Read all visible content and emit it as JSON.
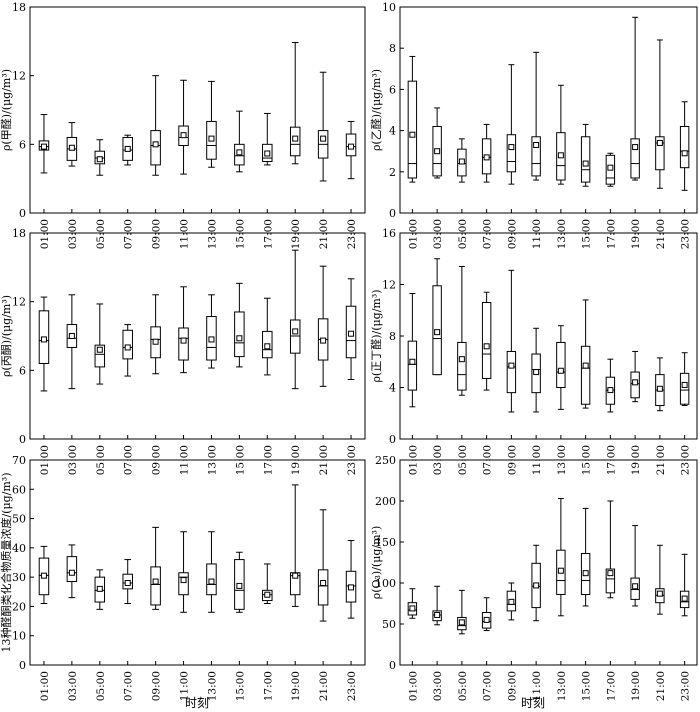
{
  "x_title": "时刻",
  "times": [
    "01:00",
    "03:00",
    "05:00",
    "07:00",
    "09:00",
    "11:00",
    "13:00",
    "15:00",
    "17:00",
    "19:00",
    "21:00",
    "23:00"
  ],
  "chart_data": [
    {
      "type": "box",
      "ylabel": "ρ(甲醛)/(μg/m³)",
      "ylim": [
        0,
        18
      ],
      "yticks": [
        0,
        6,
        12,
        18
      ],
      "boxes": [
        {
          "min": 3.5,
          "q1": 5.5,
          "median": 5.8,
          "q3": 6.3,
          "max": 8.6,
          "mean": 5.8
        },
        {
          "min": 4.1,
          "q1": 4.6,
          "median": 5.6,
          "q3": 6.6,
          "max": 7.9,
          "mean": 5.7
        },
        {
          "min": 3.3,
          "q1": 4.3,
          "median": 4.8,
          "q3": 5.4,
          "max": 6.4,
          "mean": 4.7
        },
        {
          "min": 4.2,
          "q1": 4.6,
          "median": 5.5,
          "q3": 6.6,
          "max": 6.8,
          "mean": 5.6
        },
        {
          "min": 3.3,
          "q1": 4.2,
          "median": 5.9,
          "q3": 7.2,
          "max": 12.0,
          "mean": 6.0
        },
        {
          "min": 3.4,
          "q1": 5.9,
          "median": 6.6,
          "q3": 7.6,
          "max": 11.6,
          "mean": 6.8
        },
        {
          "min": 4.0,
          "q1": 4.7,
          "median": 5.9,
          "q3": 8.0,
          "max": 11.5,
          "mean": 6.5
        },
        {
          "min": 3.6,
          "q1": 4.2,
          "median": 5.0,
          "q3": 6.0,
          "max": 8.9,
          "mean": 5.3
        },
        {
          "min": 4.2,
          "q1": 4.5,
          "median": 4.8,
          "q3": 6.0,
          "max": 8.7,
          "mean": 5.2
        },
        {
          "min": 4.3,
          "q1": 5.0,
          "median": 6.0,
          "q3": 7.5,
          "max": 14.9,
          "mean": 6.5
        },
        {
          "min": 2.8,
          "q1": 4.8,
          "median": 6.0,
          "q3": 7.2,
          "max": 12.3,
          "mean": 6.5
        },
        {
          "min": 3.0,
          "q1": 5.0,
          "median": 5.8,
          "q3": 6.9,
          "max": 8.0,
          "mean": 5.8
        }
      ]
    },
    {
      "type": "box",
      "ylabel": "ρ(乙醛)/(μg/m³)",
      "ylim": [
        0,
        10
      ],
      "yticks": [
        0,
        2,
        4,
        6,
        8,
        10
      ],
      "boxes": [
        {
          "min": 1.5,
          "q1": 1.7,
          "median": 2.4,
          "q3": 6.4,
          "max": 7.6,
          "mean": 3.8
        },
        {
          "min": 1.7,
          "q1": 1.8,
          "median": 2.4,
          "q3": 4.2,
          "max": 5.1,
          "mean": 3.0
        },
        {
          "min": 1.5,
          "q1": 1.8,
          "median": 2.4,
          "q3": 3.1,
          "max": 3.6,
          "mean": 2.5
        },
        {
          "min": 1.5,
          "q1": 1.9,
          "median": 2.7,
          "q3": 3.6,
          "max": 4.3,
          "mean": 2.7
        },
        {
          "min": 1.4,
          "q1": 2.0,
          "median": 2.5,
          "q3": 3.8,
          "max": 7.2,
          "mean": 3.2
        },
        {
          "min": 1.6,
          "q1": 1.8,
          "median": 2.4,
          "q3": 3.7,
          "max": 7.8,
          "mean": 3.3
        },
        {
          "min": 1.4,
          "q1": 1.6,
          "median": 2.3,
          "q3": 3.9,
          "max": 6.2,
          "mean": 2.8
        },
        {
          "min": 1.3,
          "q1": 1.5,
          "median": 2.1,
          "q3": 3.7,
          "max": 4.3,
          "mean": 2.4
        },
        {
          "min": 1.3,
          "q1": 1.4,
          "median": 1.7,
          "q3": 2.8,
          "max": 2.9,
          "mean": 2.2
        },
        {
          "min": 1.6,
          "q1": 1.7,
          "median": 2.4,
          "q3": 3.6,
          "max": 9.5,
          "mean": 3.2
        },
        {
          "min": 1.2,
          "q1": 2.1,
          "median": 3.4,
          "q3": 3.7,
          "max": 8.4,
          "mean": 3.4
        },
        {
          "min": 1.1,
          "q1": 2.2,
          "median": 3.0,
          "q3": 4.2,
          "max": 5.4,
          "mean": 2.9
        }
      ]
    },
    {
      "type": "box",
      "ylabel": "ρ(丙酮)/(μg/m³)",
      "ylim": [
        0,
        18
      ],
      "yticks": [
        0,
        6,
        12,
        18
      ],
      "boxes": [
        {
          "min": 4.2,
          "q1": 6.6,
          "median": 8.6,
          "q3": 11.2,
          "max": 12.4,
          "mean": 8.7
        },
        {
          "min": 4.4,
          "q1": 8.0,
          "median": 8.8,
          "q3": 10.0,
          "max": 12.6,
          "mean": 9.0
        },
        {
          "min": 4.8,
          "q1": 6.3,
          "median": 7.4,
          "q3": 8.2,
          "max": 11.8,
          "mean": 7.8
        },
        {
          "min": 5.5,
          "q1": 7.0,
          "median": 8.0,
          "q3": 9.5,
          "max": 10.0,
          "mean": 8.0
        },
        {
          "min": 5.7,
          "q1": 7.1,
          "median": 8.7,
          "q3": 9.8,
          "max": 12.6,
          "mean": 8.5
        },
        {
          "min": 5.8,
          "q1": 6.9,
          "median": 8.8,
          "q3": 9.7,
          "max": 13.3,
          "mean": 8.6
        },
        {
          "min": 6.2,
          "q1": 6.9,
          "median": 8.0,
          "q3": 10.7,
          "max": 12.6,
          "mean": 8.7
        },
        {
          "min": 6.3,
          "q1": 7.2,
          "median": 8.4,
          "q3": 11.1,
          "max": 13.6,
          "mean": 8.8
        },
        {
          "min": 5.6,
          "q1": 7.1,
          "median": 7.8,
          "q3": 9.4,
          "max": 12.3,
          "mean": 8.1
        },
        {
          "min": 4.4,
          "q1": 7.5,
          "median": 9.0,
          "q3": 10.4,
          "max": 16.5,
          "mean": 9.4
        },
        {
          "min": 4.6,
          "q1": 6.9,
          "median": 8.7,
          "q3": 10.5,
          "max": 15.1,
          "mean": 8.6
        },
        {
          "min": 5.2,
          "q1": 7.1,
          "median": 8.6,
          "q3": 11.6,
          "max": 14.0,
          "mean": 9.2
        }
      ]
    },
    {
      "type": "box",
      "ylabel": "ρ(正丁醛)/(μg/m³)",
      "ylim": [
        0,
        16
      ],
      "yticks": [
        0,
        4,
        8,
        12,
        16
      ],
      "boxes": [
        {
          "min": 2.5,
          "q1": 3.8,
          "median": 5.8,
          "q3": 7.6,
          "max": 11.3,
          "mean": 6.0
        },
        {
          "min": 5.0,
          "q1": 5.0,
          "median": 7.8,
          "q3": 11.9,
          "max": 14.0,
          "mean": 8.3
        },
        {
          "min": 3.4,
          "q1": 3.8,
          "median": 5.0,
          "q3": 7.5,
          "max": 13.4,
          "mean": 6.2
        },
        {
          "min": 3.8,
          "q1": 4.7,
          "median": 6.6,
          "q3": 10.6,
          "max": 11.4,
          "mean": 7.2
        },
        {
          "min": 2.1,
          "q1": 3.6,
          "median": 5.6,
          "q3": 6.8,
          "max": 13.1,
          "mean": 5.7
        },
        {
          "min": 2.1,
          "q1": 3.6,
          "median": 5.4,
          "q3": 6.6,
          "max": 8.6,
          "mean": 5.2
        },
        {
          "min": 2.3,
          "q1": 4.0,
          "median": 5.2,
          "q3": 7.5,
          "max": 8.8,
          "mean": 5.3
        },
        {
          "min": 2.4,
          "q1": 2.7,
          "median": 5.5,
          "q3": 7.2,
          "max": 10.8,
          "mean": 5.7
        },
        {
          "min": 2.1,
          "q1": 2.7,
          "median": 3.8,
          "q3": 4.8,
          "max": 6.2,
          "mean": 3.8
        },
        {
          "min": 2.9,
          "q1": 3.2,
          "median": 4.3,
          "q3": 5.2,
          "max": 6.8,
          "mean": 4.4
        },
        {
          "min": 2.2,
          "q1": 2.6,
          "median": 3.8,
          "q3": 5.0,
          "max": 6.3,
          "mean": 3.9
        },
        {
          "min": 2.6,
          "q1": 2.7,
          "median": 3.8,
          "q3": 5.1,
          "max": 6.7,
          "mean": 4.2
        }
      ]
    },
    {
      "type": "box",
      "ylabel": "13种醛酮类化合物质量浓度/(μg/m³)",
      "ylim": [
        0,
        70
      ],
      "yticks": [
        0,
        10,
        20,
        30,
        40,
        50,
        60,
        70
      ],
      "boxes": [
        {
          "min": 21.0,
          "q1": 24.0,
          "median": 30.6,
          "q3": 36.5,
          "max": 40.5,
          "mean": 30.5
        },
        {
          "min": 23.0,
          "q1": 28.5,
          "median": 31.5,
          "q3": 37.0,
          "max": 41.0,
          "mean": 31.5
        },
        {
          "min": 19.0,
          "q1": 21.5,
          "median": 25.5,
          "q3": 30.0,
          "max": 32.5,
          "mean": 26.0
        },
        {
          "min": 21.0,
          "q1": 26.0,
          "median": 28.0,
          "q3": 31.0,
          "max": 36.0,
          "mean": 28.0
        },
        {
          "min": 19.0,
          "q1": 20.5,
          "median": 27.5,
          "q3": 33.5,
          "max": 47.0,
          "mean": 28.5
        },
        {
          "min": 18.0,
          "q1": 24.0,
          "median": 30.0,
          "q3": 31.5,
          "max": 45.5,
          "mean": 29.0
        },
        {
          "min": 18.0,
          "q1": 24.0,
          "median": 27.5,
          "q3": 34.5,
          "max": 45.5,
          "mean": 28.5
        },
        {
          "min": 18.0,
          "q1": 19.0,
          "median": 25.5,
          "q3": 36.0,
          "max": 38.5,
          "mean": 27.0
        },
        {
          "min": 21.0,
          "q1": 22.0,
          "median": 24.0,
          "q3": 25.5,
          "max": 34.5,
          "mean": 24.0
        },
        {
          "min": 20.0,
          "q1": 24.0,
          "median": 30.5,
          "q3": 31.5,
          "max": 61.5,
          "mean": 30.5
        },
        {
          "min": 15.0,
          "q1": 20.5,
          "median": 27.0,
          "q3": 32.5,
          "max": 53.0,
          "mean": 28.0
        },
        {
          "min": 16.0,
          "q1": 21.5,
          "median": 27.0,
          "q3": 32.0,
          "max": 42.5,
          "mean": 26.5
        }
      ]
    },
    {
      "type": "box",
      "ylabel": "ρ(O₃)/(μg/m³)",
      "ylim": [
        0,
        250
      ],
      "yticks": [
        0,
        50,
        100,
        150,
        200,
        250
      ],
      "boxes": [
        {
          "min": 57,
          "q1": 61,
          "median": 67,
          "q3": 76,
          "max": 93,
          "mean": 69
        },
        {
          "min": 49,
          "q1": 54,
          "median": 61,
          "q3": 66,
          "max": 96,
          "mean": 61
        },
        {
          "min": 38,
          "q1": 43,
          "median": 48,
          "q3": 58,
          "max": 91,
          "mean": 52
        },
        {
          "min": 42,
          "q1": 45,
          "median": 53,
          "q3": 64,
          "max": 82,
          "mean": 55
        },
        {
          "min": 55,
          "q1": 66,
          "median": 74,
          "q3": 90,
          "max": 100,
          "mean": 77
        },
        {
          "min": 54,
          "q1": 70,
          "median": 96,
          "q3": 124,
          "max": 146,
          "mean": 97
        },
        {
          "min": 60,
          "q1": 86,
          "median": 103,
          "q3": 140,
          "max": 203,
          "mean": 115
        },
        {
          "min": 72,
          "q1": 86,
          "median": 103,
          "q3": 136,
          "max": 191,
          "mean": 112
        },
        {
          "min": 82,
          "q1": 88,
          "median": 105,
          "q3": 117,
          "max": 200,
          "mean": 112
        },
        {
          "min": 72,
          "q1": 80,
          "median": 92,
          "q3": 106,
          "max": 170,
          "mean": 96
        },
        {
          "min": 62,
          "q1": 76,
          "median": 85,
          "q3": 93,
          "max": 146,
          "mean": 87
        },
        {
          "min": 60,
          "q1": 70,
          "median": 77,
          "q3": 90,
          "max": 135,
          "mean": 81
        }
      ]
    }
  ]
}
